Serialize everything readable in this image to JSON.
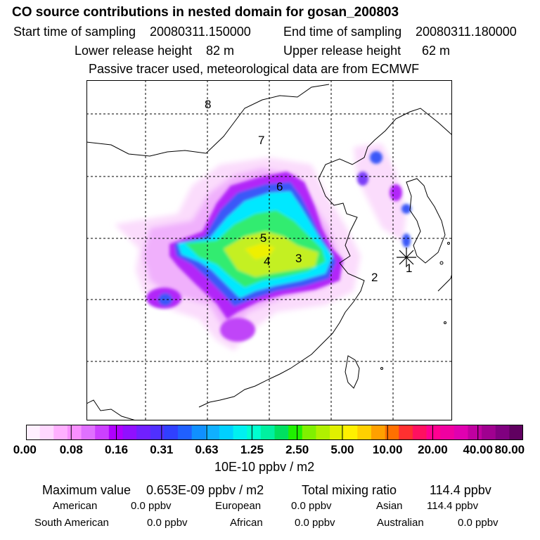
{
  "header": {
    "title": "CO  source contributions in nested domain for gosan_200803",
    "start_label": "Start time of sampling",
    "start_value": "20080311.150000",
    "end_label": "End time of sampling",
    "end_value": "20080311.180000",
    "lower_label": "Lower release height",
    "lower_value": "82 m",
    "upper_label": "Upper release height",
    "upper_value": "62 m",
    "note": "Passive tracer used, meteorological data are from ECMWF"
  },
  "chart_data": {
    "type": "heatmap",
    "region_labels": [
      "1",
      "2",
      "3",
      "4",
      "5",
      "6",
      "7",
      "8"
    ],
    "receptor_marker": "gosan",
    "colorbar": {
      "unit_label": "10E-10 ppbv / m2",
      "tick_labels": [
        "0.00",
        "0.08",
        "0.16",
        "0.31",
        "0.63",
        "1.25",
        "2.50",
        "5.00",
        "10.00",
        "20.00",
        "40.00",
        "80.00"
      ],
      "colors": [
        "#fff0ff",
        "#ffd8ff",
        "#ffb0ff",
        "#f890ff",
        "#e070ff",
        "#cc40ff",
        "#b000ff",
        "#9010ff",
        "#7020ff",
        "#5030ff",
        "#3040ff",
        "#2060ff",
        "#1090ff",
        "#10b0ff",
        "#00d0ff",
        "#00f0f0",
        "#00ffd0",
        "#00f0a0",
        "#00e060",
        "#20f000",
        "#80f000",
        "#b0f000",
        "#e0f000",
        "#fff000",
        "#ffd000",
        "#ffa000",
        "#ff7000",
        "#ff3030",
        "#ff1060",
        "#ff0090",
        "#f000a0",
        "#e000b0",
        "#c000a0",
        "#a00090",
        "#800080",
        "#600060"
      ]
    }
  },
  "stats": {
    "max_label": "Maximum value",
    "max_value": "0.653E-09 ppbv / m2",
    "total_label": "Total mixing ratio",
    "total_value": "114.4 ppbv",
    "american_label": "American",
    "american_value": "0.0 ppbv",
    "european_label": "European",
    "european_value": "0.0 ppbv",
    "asian_label": "Asian",
    "asian_value": "114.4 ppbv",
    "south_american_label": "South American",
    "south_american_value": "0.0 ppbv",
    "african_label": "African",
    "african_value": "0.0 ppbv",
    "australian_label": "Australian",
    "australian_value": "0.0 ppbv"
  }
}
